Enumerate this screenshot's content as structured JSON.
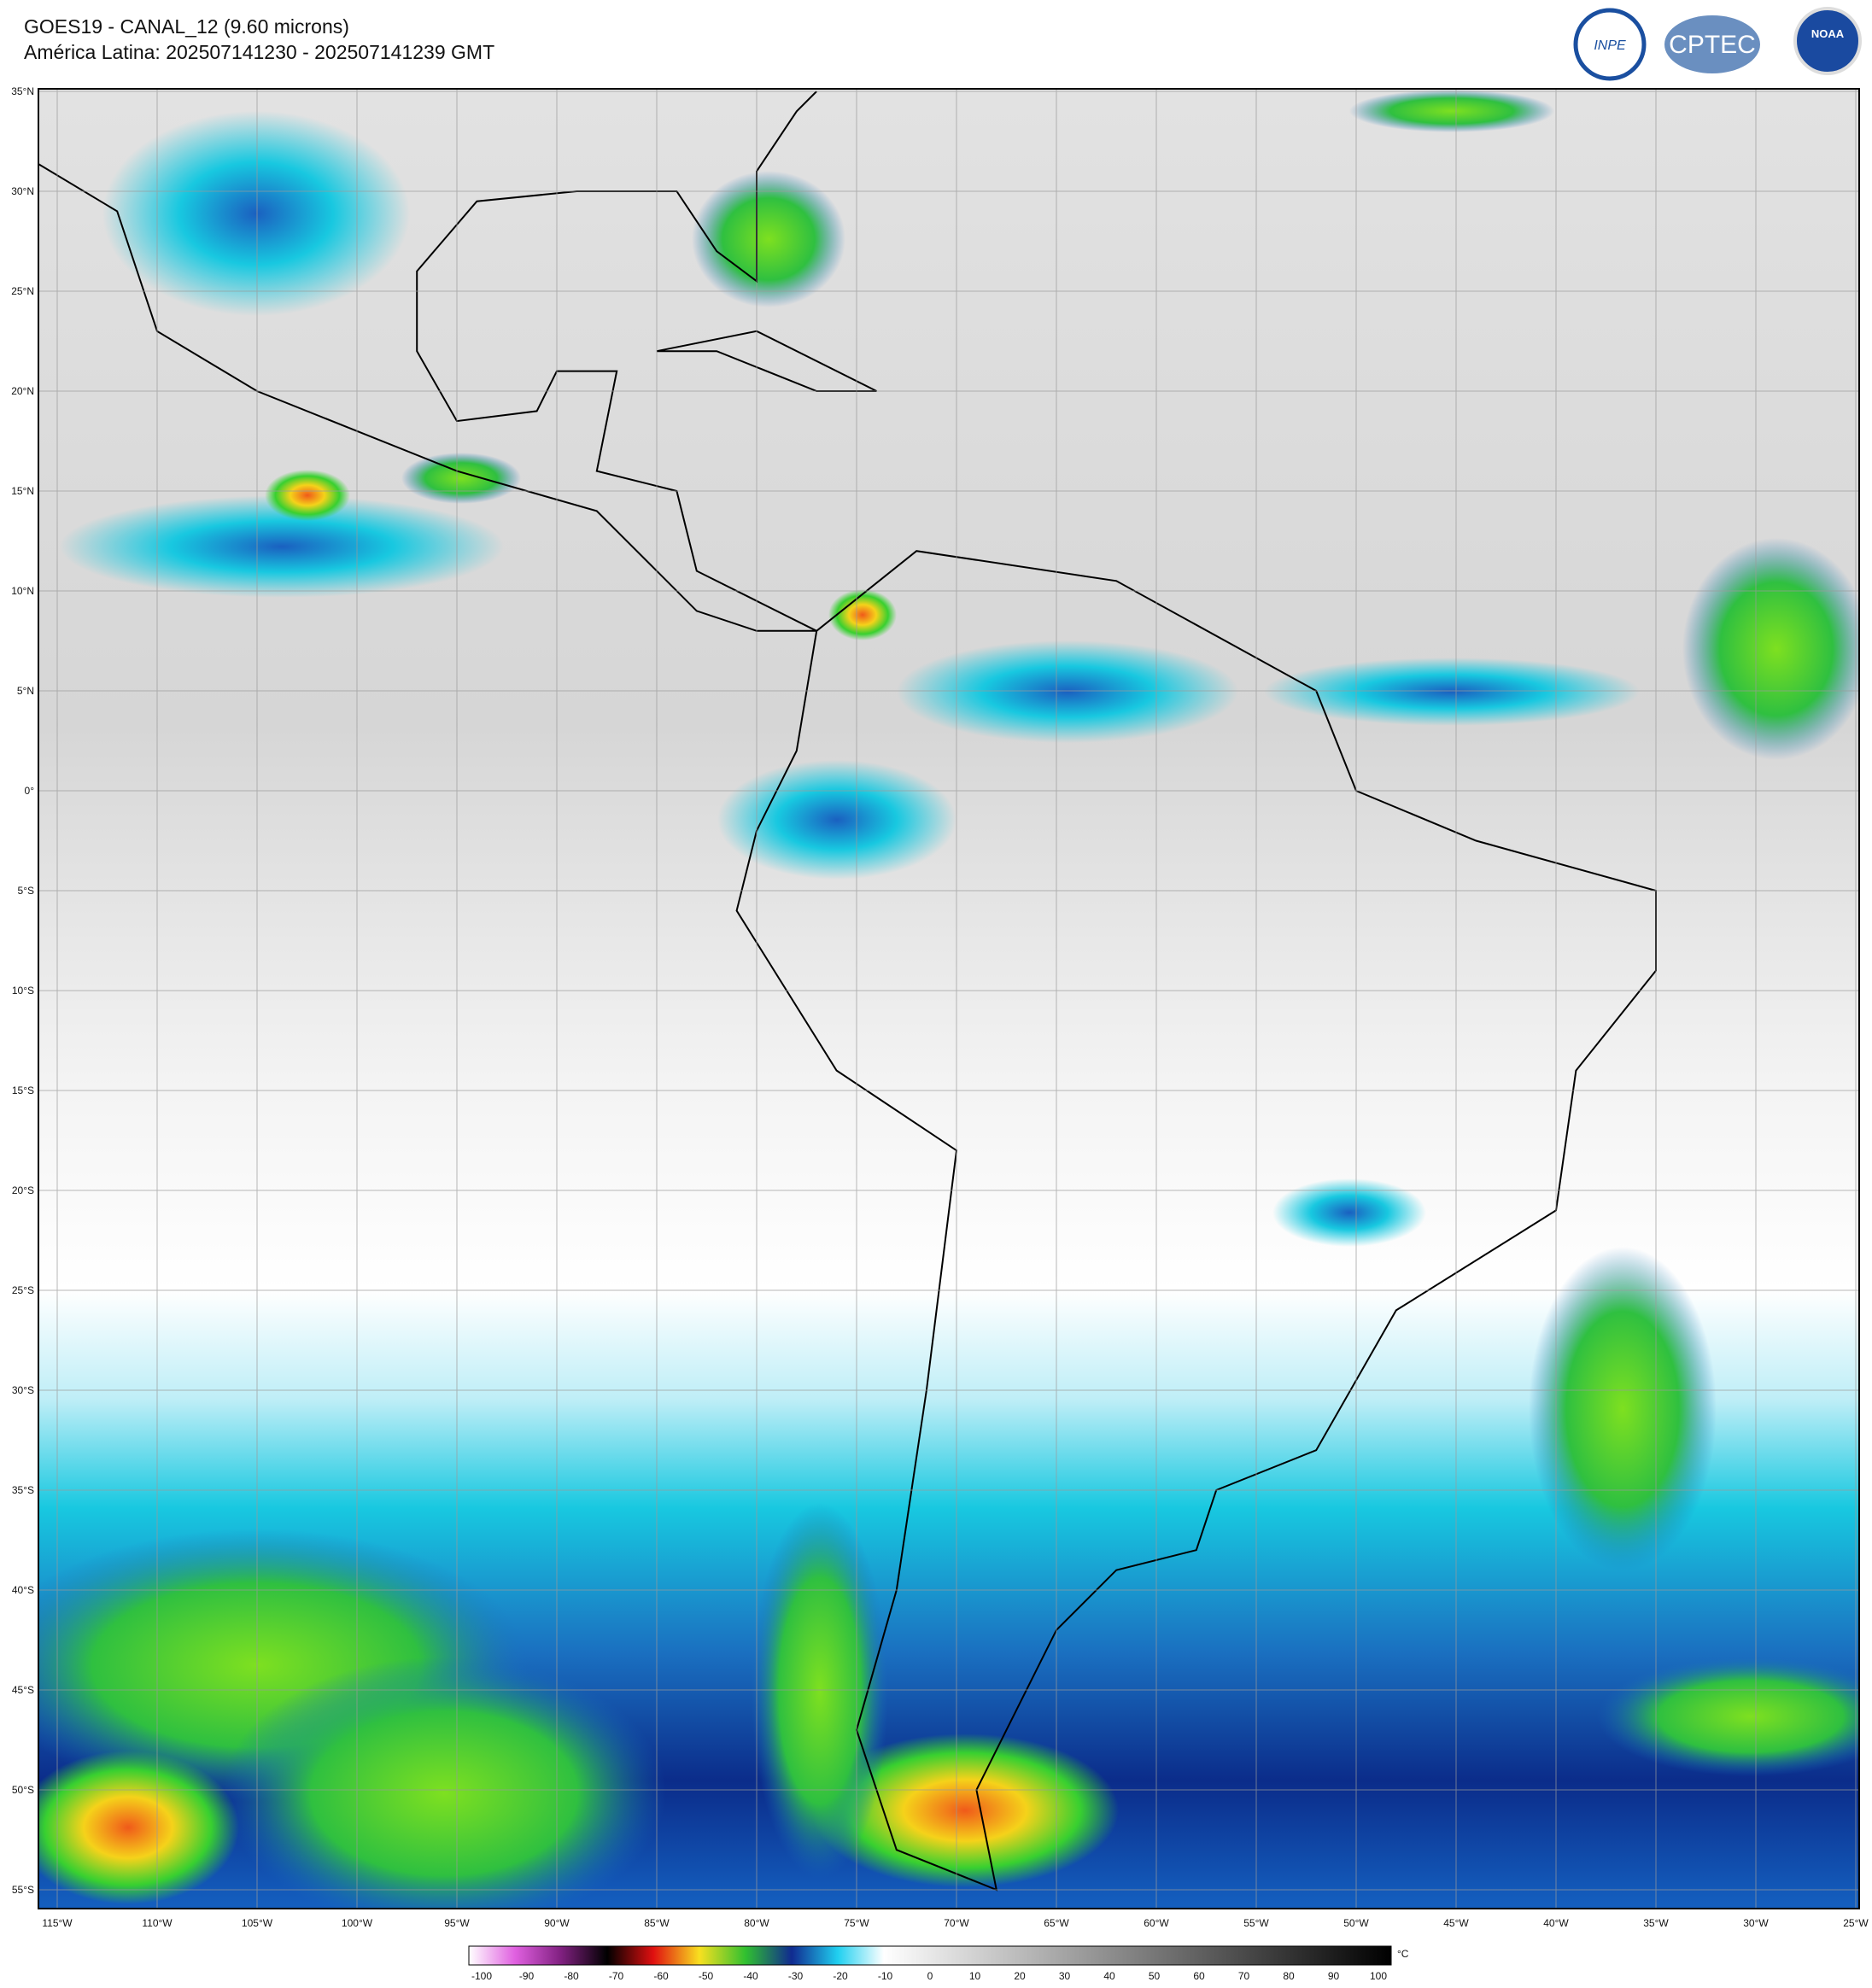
{
  "header": {
    "title": "GOES19 - CANAL_12 (9.60 microns)",
    "subtitle": "América Latina: 202507141230 - 202507141239 GMT"
  },
  "logos": [
    "INPE",
    "CPTEC",
    "NOAA"
  ],
  "map": {
    "lat_labels": [
      "35°N",
      "30°N",
      "25°N",
      "20°N",
      "15°N",
      "10°N",
      "5°N",
      "0°",
      "5°S",
      "10°S",
      "15°S",
      "20°S",
      "25°S",
      "30°S",
      "35°S",
      "40°S",
      "45°S",
      "50°S",
      "55°S"
    ],
    "lon_labels": [
      "115°W",
      "110°W",
      "105°W",
      "100°W",
      "95°W",
      "90°W",
      "85°W",
      "80°W",
      "75°W",
      "70°W",
      "65°W",
      "60°W",
      "55°W",
      "50°W",
      "45°W",
      "40°W",
      "35°W",
      "30°W",
      "25°W"
    ]
  },
  "colorbar": {
    "ticks": [
      -100,
      -90,
      -80,
      -70,
      -60,
      -50,
      -40,
      -30,
      -20,
      -10,
      0,
      10,
      20,
      30,
      40,
      50,
      60,
      70,
      80,
      90,
      100
    ],
    "unit": "°C"
  }
}
